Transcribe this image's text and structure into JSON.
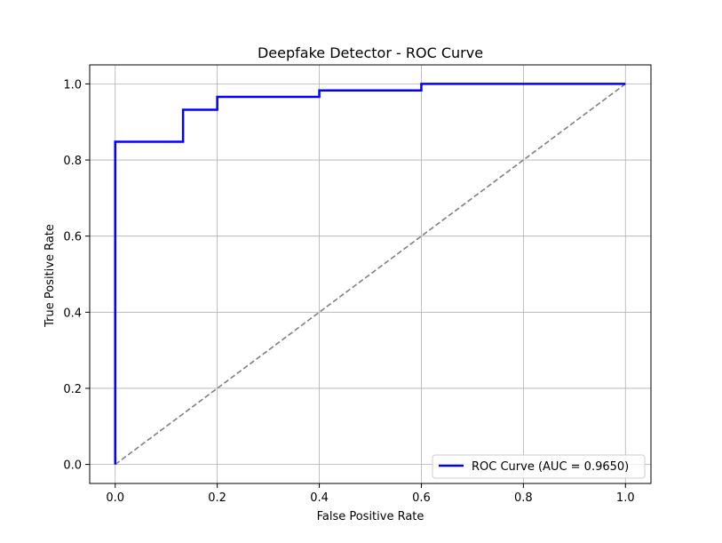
{
  "chart_data": {
    "type": "line",
    "title": "Deepfake Detector - ROC Curve",
    "xlabel": "False Positive Rate",
    "ylabel": "True Positive Rate",
    "xlim": [
      -0.05,
      1.05
    ],
    "ylim": [
      -0.05,
      1.05
    ],
    "xticks": [
      0.0,
      0.2,
      0.4,
      0.6,
      0.8,
      1.0
    ],
    "yticks": [
      0.0,
      0.2,
      0.4,
      0.6,
      0.8,
      1.0
    ],
    "xtick_labels": [
      "0.0",
      "0.2",
      "0.4",
      "0.6",
      "0.8",
      "1.0"
    ],
    "ytick_labels": [
      "0.0",
      "0.2",
      "0.4",
      "0.6",
      "0.8",
      "1.0"
    ],
    "grid": true,
    "legend_position": "lower-right",
    "series": [
      {
        "name": "ROC Curve (AUC = 0.9650)",
        "color": "#0000ff",
        "style": "solid",
        "x": [
          0.0,
          0.0,
          0.133,
          0.133,
          0.2,
          0.2,
          0.4,
          0.4,
          0.6,
          0.6,
          1.0
        ],
        "y": [
          0.0,
          0.848,
          0.848,
          0.932,
          0.932,
          0.966,
          0.966,
          0.983,
          0.983,
          1.0,
          1.0
        ]
      },
      {
        "color": "#808080",
        "style": "dashed",
        "x": [
          0.0,
          1.0
        ],
        "y": [
          0.0,
          1.0
        ]
      }
    ]
  }
}
